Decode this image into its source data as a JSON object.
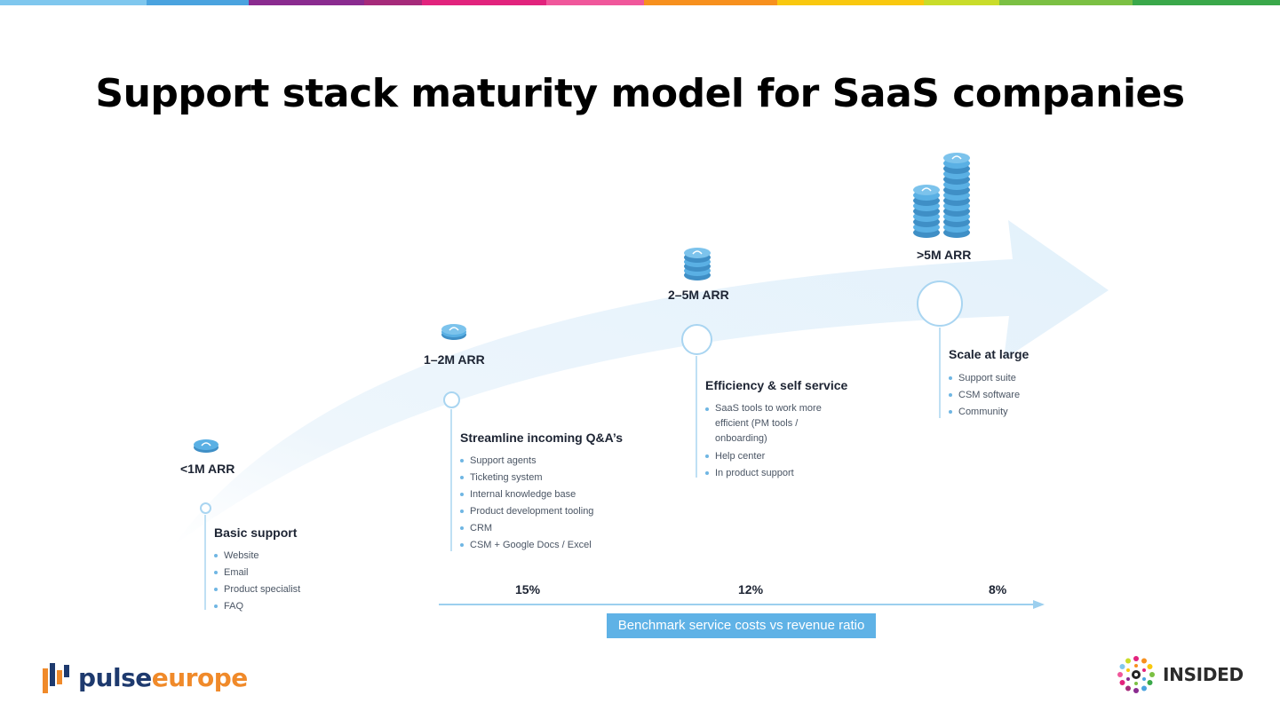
{
  "title": "Support stack maturity model for SaaS companies",
  "colors": {
    "accent": "#5fb2e6",
    "arrow": "#e8f3fb",
    "ring": "#a9d5f1",
    "coin": "#5ab0e4",
    "top_stripes": [
      "#7fc7ee",
      "#4aa3df",
      "#8a2b8f",
      "#a62a7a",
      "#e2237d",
      "#f0579b",
      "#f7901e",
      "#f9c80e",
      "#c9dc2a",
      "#7bc043",
      "#3aa84a"
    ]
  },
  "stages": [
    {
      "arr": "<1M ARR",
      "title": "Basic support",
      "items": [
        "Website",
        "Email",
        "Product specialist",
        "FAQ"
      ],
      "coin_icon": "coin-icon"
    },
    {
      "arr": "1–2M ARR",
      "title": "Streamline incoming Q&A’s",
      "items": [
        "Support agents",
        "Ticketing system",
        "Internal knowledge base",
        "Product development tooling",
        "CRM",
        "CSM + Google Docs / Excel"
      ],
      "coin_icon": "coin-icon"
    },
    {
      "arr": "2–5M ARR",
      "title": "Efficiency & self service",
      "items": [
        "SaaS tools to work more efficient (PM tools / onboarding)",
        "Help center",
        "In product support"
      ],
      "coin_icon": "coin-stack-icon"
    },
    {
      "arr": ">5M ARR",
      "title": "Scale at large",
      "items": [
        "Support suite",
        "CSM software",
        "Community"
      ],
      "coin_icon": "coin-stacks-icon"
    }
  ],
  "benchmark": {
    "percentages": [
      "15%",
      "12%",
      "8%"
    ],
    "label": "Benchmark service costs vs revenue ratio"
  },
  "logos": {
    "left": {
      "word1": "pulse",
      "word2": "europe"
    },
    "right": {
      "word": "INSIDED"
    }
  }
}
